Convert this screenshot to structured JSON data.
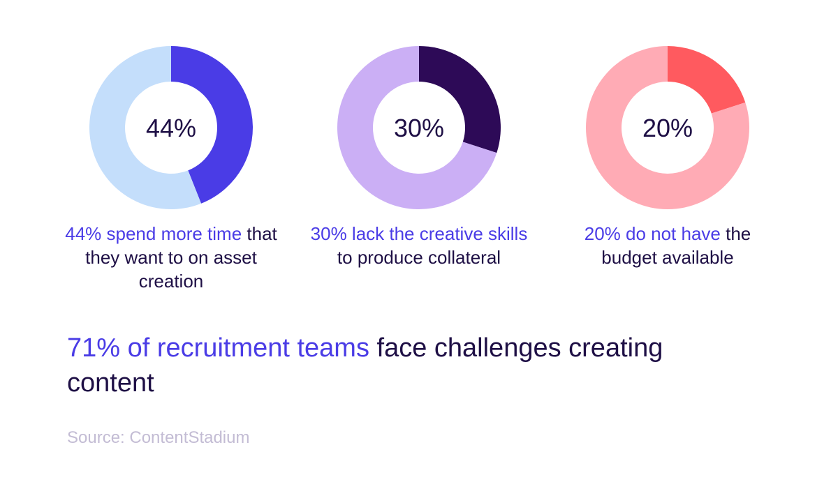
{
  "chart_data": [
    {
      "type": "pie",
      "center_label": "44%",
      "slices": [
        {
          "label": "44%",
          "value": 44,
          "color": "#4a3ce6"
        },
        {
          "label": "",
          "value": 56,
          "color": "#c4defb"
        }
      ],
      "caption_highlight": "44% spend more time",
      "caption_rest": " that they want to on asset creation"
    },
    {
      "type": "pie",
      "center_label": "30%",
      "slices": [
        {
          "label": "30%",
          "value": 30,
          "color": "#2d0a57"
        },
        {
          "label": "",
          "value": 70,
          "color": "#cbaff5"
        }
      ],
      "caption_highlight": "30% lack the creative skills",
      "caption_rest": " to produce collateral"
    },
    {
      "type": "pie",
      "center_label": "20%",
      "slices": [
        {
          "label": "20%",
          "value": 20,
          "color": "#ff5a5f"
        },
        {
          "label": "",
          "value": 80,
          "color": "#ffabb5"
        }
      ],
      "caption_highlight": "20% do not have",
      "caption_rest": " the budget available"
    }
  ],
  "headline": {
    "highlight": "71% of recruitment teams",
    "rest": " face challenges creating content"
  },
  "source": "Source: ContentStadium",
  "colors": {
    "text_dark": "#1e0f45",
    "text_accent": "#4a3ce6",
    "source_text": "#c3bcd4"
  }
}
